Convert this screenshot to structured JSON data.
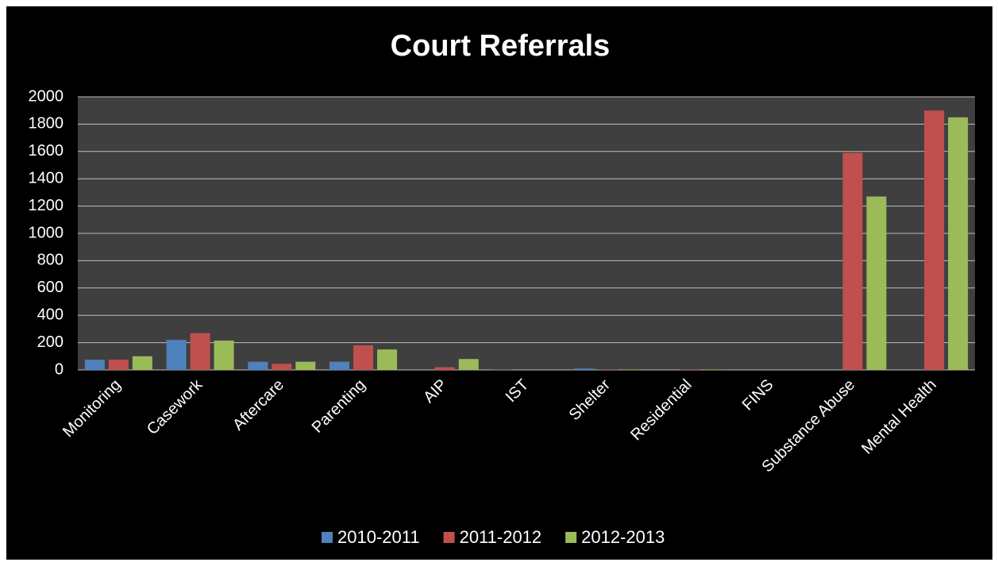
{
  "chart_data": {
    "type": "bar",
    "title": "Court Referrals",
    "categories": [
      "Monitoring",
      "Casework",
      "Aftercare",
      "Parenting",
      "AIP",
      "IST",
      "Shelter",
      "Residential",
      "FINS",
      "Substance Abuse",
      "Mental Health"
    ],
    "series": [
      {
        "name": "2010-2011",
        "color": "#4f81bd",
        "values": [
          75,
          220,
          60,
          60,
          0,
          2,
          10,
          0,
          0,
          0,
          0
        ]
      },
      {
        "name": "2011-2012",
        "color": "#c0504d",
        "values": [
          75,
          270,
          45,
          180,
          20,
          0,
          3,
          3,
          0,
          1590,
          1900
        ]
      },
      {
        "name": "2012-2013",
        "color": "#9bbb59",
        "values": [
          100,
          215,
          60,
          150,
          80,
          0,
          3,
          3,
          0,
          1270,
          1850
        ]
      }
    ],
    "ylim": [
      0,
      2000
    ],
    "yticks": [
      0,
      200,
      400,
      600,
      800,
      1000,
      1200,
      1400,
      1600,
      1800,
      2000
    ],
    "grid": true,
    "legend": "bottom"
  }
}
